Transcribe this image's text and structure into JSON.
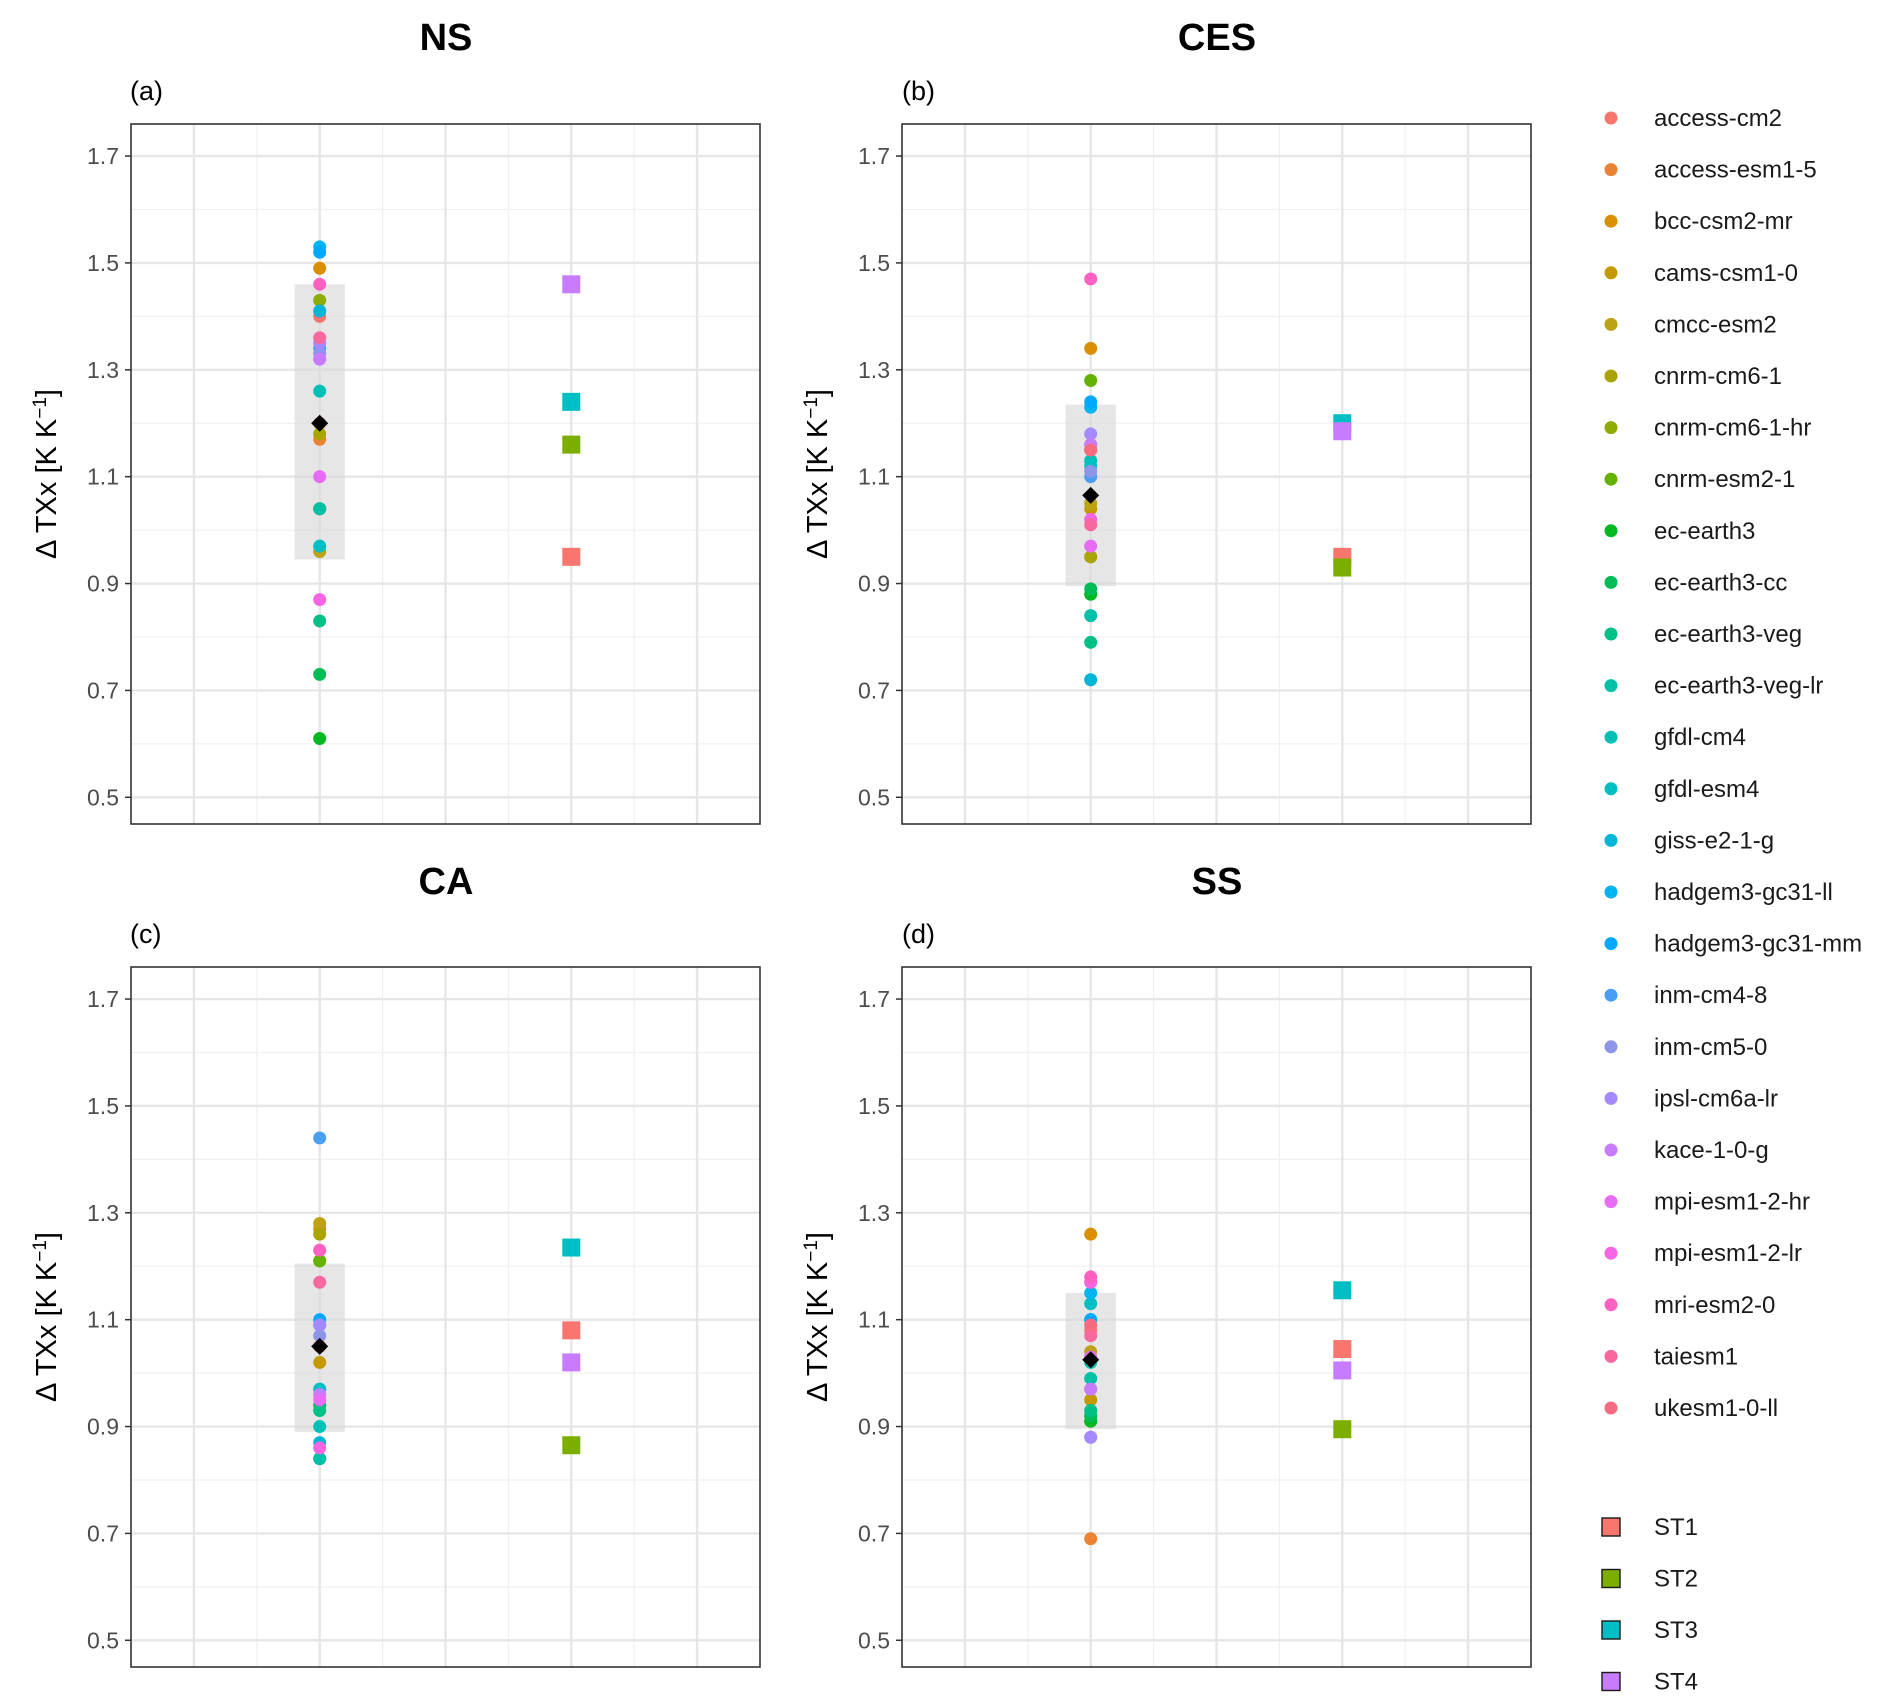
{
  "chart_data": {
    "type": "scatter",
    "y_axis": {
      "label": "Δ TXx [K K",
      "label_superscript": "−1",
      "label_suffix": "]",
      "ylim": [
        0.45,
        1.76
      ],
      "ticks": [
        0.5,
        0.7,
        0.9,
        1.1,
        1.3,
        1.5,
        1.7
      ],
      "tick_labels": [
        "0.5",
        "0.7",
        "0.9",
        "1.1",
        "1.3",
        "1.5",
        "1.7"
      ]
    },
    "x_axis": {
      "tick_labels": [],
      "xlim": [
        0,
        10
      ],
      "model_x": 3,
      "storyline_x": 7
    },
    "grid": true,
    "legend_position": "right",
    "models": [
      {
        "name": "access-cm2",
        "color": "#F8766D"
      },
      {
        "name": "access-esm1-5",
        "color": "#EB8335"
      },
      {
        "name": "bcc-csm2-mr",
        "color": "#DA8F00"
      },
      {
        "name": "cams-csm1-0",
        "color": "#C49A00"
      },
      {
        "name": "cmcc-esm2",
        "color": "#BCA214"
      },
      {
        "name": "cnrm-cm6-1",
        "color": "#A9A400"
      },
      {
        "name": "cnrm-cm6-1-hr",
        "color": "#8EAB00"
      },
      {
        "name": "cnrm-esm2-1",
        "color": "#64B200"
      },
      {
        "name": "ec-earth3",
        "color": "#00B81F"
      },
      {
        "name": "ec-earth3-cc",
        "color": "#00BC56"
      },
      {
        "name": "ec-earth3-veg",
        "color": "#00C087"
      },
      {
        "name": "ec-earth3-veg-lr",
        "color": "#00C0A7"
      },
      {
        "name": "gfdl-cm4",
        "color": "#00BFB5"
      },
      {
        "name": "gfdl-esm4",
        "color": "#00BFC4"
      },
      {
        "name": "giss-e2-1-g",
        "color": "#00B6D8"
      },
      {
        "name": "hadgem3-gc31-ll",
        "color": "#00B4EF"
      },
      {
        "name": "hadgem3-gc31-mm",
        "color": "#00A9FF"
      },
      {
        "name": "inm-cm4-8",
        "color": "#4B9FF2"
      },
      {
        "name": "inm-cm5-0",
        "color": "#8C95E8"
      },
      {
        "name": "ipsl-cm6a-lr",
        "color": "#A58AFF"
      },
      {
        "name": "kace-1-0-g",
        "color": "#C77CFF"
      },
      {
        "name": "mpi-esm1-2-hr",
        "color": "#E76BF3"
      },
      {
        "name": "mpi-esm1-2-lr",
        "color": "#F564E3"
      },
      {
        "name": "mri-esm2-0",
        "color": "#FF61C3"
      },
      {
        "name": "taiesm1",
        "color": "#F7689F"
      },
      {
        "name": "ukesm1-0-ll",
        "color": "#F66B7F"
      }
    ],
    "storylines": [
      {
        "name": "ST1",
        "color": "#F8766D"
      },
      {
        "name": "ST2",
        "color": "#7CAE00"
      },
      {
        "name": "ST3",
        "color": "#00BFC4"
      },
      {
        "name": "ST4",
        "color": "#C77CFF"
      }
    ],
    "panels": [
      {
        "title": "NS",
        "tag": "(a)",
        "model_values": [
          1.4,
          1.17,
          1.49,
          1.04,
          0.96,
          1.18,
          1.43,
          1.04,
          0.61,
          0.73,
          0.83,
          1.04,
          1.26,
          0.97,
          1.41,
          1.53,
          1.52,
          1.34,
          1.33,
          1.35,
          1.32,
          1.1,
          0.87,
          1.46,
          1.36,
          1.2
        ],
        "mean": 1.2,
        "box": [
          0.945,
          1.46
        ],
        "storyline_values": [
          0.95,
          1.16,
          1.24,
          1.46
        ]
      },
      {
        "title": "CES",
        "tag": "(b)",
        "model_values": [
          1.16,
          0.95,
          1.34,
          1.04,
          1.05,
          0.95,
          1.15,
          1.28,
          0.88,
          0.89,
          0.79,
          0.84,
          1.13,
          1.12,
          0.72,
          1.23,
          1.24,
          1.1,
          1.11,
          1.18,
          1.16,
          0.97,
          1.02,
          1.47,
          1.01,
          1.15
        ],
        "mean": 1.065,
        "box": [
          0.895,
          1.235
        ],
        "storyline_values": [
          0.95,
          0.93,
          1.2,
          1.185
        ]
      },
      {
        "title": "CA",
        "tag": "(c)",
        "model_values": [
          1.23,
          1.05,
          1.27,
          1.02,
          1.28,
          1.26,
          1.21,
          1.21,
          0.84,
          0.94,
          0.93,
          0.84,
          0.9,
          0.97,
          0.87,
          1.09,
          1.1,
          1.44,
          1.07,
          1.09,
          0.96,
          0.95,
          0.86,
          1.23,
          1.17,
          1.05
        ],
        "mean": 1.05,
        "box": [
          0.89,
          1.205
        ],
        "storyline_values": [
          1.08,
          0.865,
          1.235,
          1.02
        ]
      },
      {
        "title": "SS",
        "tag": "(d)",
        "model_values": [
          1.08,
          0.69,
          1.26,
          0.95,
          1.04,
          0.97,
          0.91,
          0.92,
          0.91,
          0.92,
          0.93,
          0.99,
          1.02,
          1.13,
          1.1,
          1.15,
          1.1,
          1.17,
          0.88,
          0.88,
          0.97,
          1.03,
          1.17,
          1.18,
          1.07,
          1.09
        ],
        "mean": 1.025,
        "box": [
          0.895,
          1.15
        ],
        "storyline_values": [
          1.045,
          0.895,
          1.155,
          1.005
        ]
      }
    ]
  }
}
